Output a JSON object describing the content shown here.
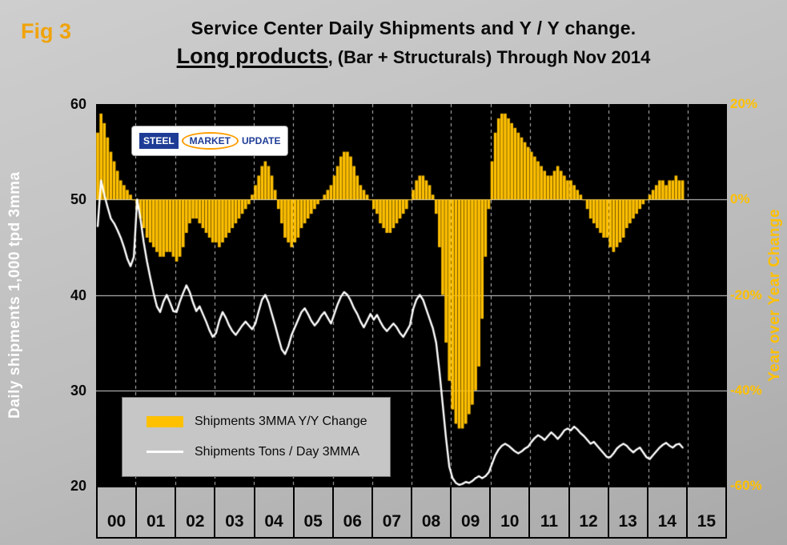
{
  "fig_label": "Fig 3",
  "title_line1": "Service Center Daily Shipments and Y / Y change.",
  "title_line2_emphasis": "Long products",
  "title_line2_rest": ", (Bar + Structurals) Through Nov 2014",
  "left_axis_label": "Daily shipments 1,000 tpd 3mma",
  "right_axis_label": "Year over Year Change",
  "logo": {
    "word1": "STEEL",
    "word2": "MARKET",
    "word3": "UPDATE"
  },
  "legend": [
    {
      "swatch": "bar",
      "label": "Shipments 3MMA Y/Y Change"
    },
    {
      "swatch": "line",
      "label": "Shipments Tons / Day 3MMA"
    }
  ],
  "colors": {
    "plot_bg": "#000000",
    "bar": "#ffc000",
    "line": "#ffffff",
    "gridline": "rgba(255,255,255,0.85)",
    "grid_dash": "rgba(255,255,255,0.75)",
    "accent_yellow": "#ffc000"
  },
  "chart_data": {
    "type": "bar",
    "subtype": "bar+line dual axis, monthly from Jan 2000 through Nov 2014",
    "x_years": [
      "00",
      "01",
      "02",
      "03",
      "04",
      "05",
      "06",
      "07",
      "08",
      "09",
      "10",
      "11",
      "12",
      "13",
      "14",
      "15"
    ],
    "months_per_year": 12,
    "left_axis": {
      "label": "Daily shipments 1,000 tpd 3mma",
      "min": 20,
      "max": 60,
      "ticks": [
        60,
        50,
        40,
        30,
        20
      ]
    },
    "right_axis": {
      "label": "Year over Year Change",
      "min": -60,
      "max": 20,
      "ticks": [
        "20%",
        "0%",
        "-20%",
        "-40%",
        "-60%"
      ],
      "tick_values": [
        20,
        0,
        -20,
        -40,
        -60
      ]
    },
    "gridlines": {
      "horizontal_left_values": [
        30,
        40,
        50
      ],
      "vertical_every_year": true
    },
    "series": [
      {
        "name": "Shipments 3MMA Y/Y Change",
        "type": "bar",
        "axis": "right",
        "color": "#ffc000",
        "values": [
          14,
          18,
          16,
          13,
          10,
          8,
          6,
          4,
          3,
          2,
          1,
          0,
          -2,
          -4,
          -6,
          -8,
          -9,
          -10,
          -11,
          -12,
          -12,
          -11,
          -11,
          -12,
          -13,
          -12,
          -10,
          -7,
          -5,
          -4,
          -4,
          -5,
          -6,
          -7,
          -8,
          -9,
          -9,
          -10,
          -9,
          -8,
          -7,
          -6,
          -5,
          -4,
          -3,
          -2,
          -1,
          1,
          3,
          5,
          7,
          8,
          7,
          5,
          2,
          -2,
          -5,
          -8,
          -9,
          -10,
          -9,
          -8,
          -6,
          -5,
          -4,
          -3,
          -2,
          -1,
          0,
          1,
          2,
          3,
          5,
          7,
          9,
          10,
          10,
          9,
          7,
          5,
          3,
          2,
          1,
          0,
          -2,
          -3,
          -5,
          -6,
          -7,
          -7,
          -6,
          -5,
          -4,
          -3,
          -2,
          0,
          2,
          4,
          5,
          5,
          4,
          3,
          1,
          -3,
          -10,
          -20,
          -30,
          -38,
          -44,
          -47,
          -48,
          -48,
          -47,
          -45,
          -43,
          -40,
          -35,
          -25,
          -12,
          -2,
          8,
          14,
          17,
          18,
          18,
          17,
          16,
          15,
          14,
          13,
          12,
          11,
          10,
          9,
          8,
          7,
          6,
          5,
          5,
          6,
          7,
          6,
          5,
          4,
          4,
          3,
          2,
          1,
          0,
          -2,
          -4,
          -5,
          -6,
          -7,
          -8,
          -8,
          -10,
          -11,
          -10,
          -9,
          -8,
          -6,
          -5,
          -4,
          -3,
          -2,
          -1,
          0,
          1,
          2,
          3,
          4,
          4,
          3,
          4,
          4,
          5,
          4,
          4
        ]
      },
      {
        "name": "Shipments Tons / Day 3MMA",
        "type": "line",
        "axis": "left",
        "color": "#ffffff",
        "values": [
          47.2,
          52,
          50.5,
          49.2,
          48,
          47.5,
          46.8,
          46,
          45,
          43.8,
          43,
          44,
          50,
          48,
          45.5,
          43.5,
          41.8,
          40.2,
          38.8,
          38.2,
          39.3,
          40,
          39.2,
          38.3,
          38.2,
          39.3,
          40.2,
          41,
          40.3,
          39.2,
          38.3,
          38.8,
          38,
          37.2,
          36.3,
          35.6,
          36,
          37.3,
          38.2,
          37.6,
          36.8,
          36.2,
          35.8,
          36.3,
          36.8,
          37.2,
          36.8,
          36.4,
          37,
          38.3,
          39.5,
          40,
          39.2,
          38,
          36.8,
          35.5,
          34.3,
          33.8,
          34.6,
          35.8,
          36.6,
          37.4,
          38.2,
          38.6,
          38,
          37.3,
          36.8,
          37.2,
          37.8,
          38.2,
          37.6,
          37,
          38,
          39,
          39.8,
          40.3,
          40,
          39.4,
          38.6,
          38,
          37.2,
          36.6,
          37.3,
          38,
          37.4,
          37.9,
          37.2,
          36.6,
          36.2,
          36.6,
          37,
          36.6,
          36,
          35.6,
          36.2,
          36.8,
          38.5,
          39.5,
          40,
          39.5,
          38.5,
          37.5,
          36.5,
          35,
          32,
          28.5,
          25,
          22,
          20.8,
          20.3,
          20.1,
          20.2,
          20.4,
          20.3,
          20.5,
          20.8,
          21,
          20.8,
          21,
          21.4,
          22.3,
          23.2,
          23.8,
          24.2,
          24.4,
          24.2,
          23.9,
          23.6,
          23.4,
          23.6,
          23.9,
          24.1,
          24.6,
          25,
          25.3,
          25.1,
          24.8,
          25.2,
          25.6,
          25.3,
          24.9,
          25.3,
          25.8,
          26,
          25.8,
          26.2,
          25.9,
          25.5,
          25.2,
          24.8,
          24.4,
          24.6,
          24.2,
          23.8,
          23.4,
          23,
          23,
          23.4,
          23.9,
          24.2,
          24.4,
          24.2,
          23.8,
          23.5,
          23.8,
          24,
          23.5,
          23,
          22.8,
          23.2,
          23.6,
          24,
          24.3,
          24.5,
          24.2,
          24,
          24.3,
          24.4,
          24
        ]
      }
    ]
  }
}
